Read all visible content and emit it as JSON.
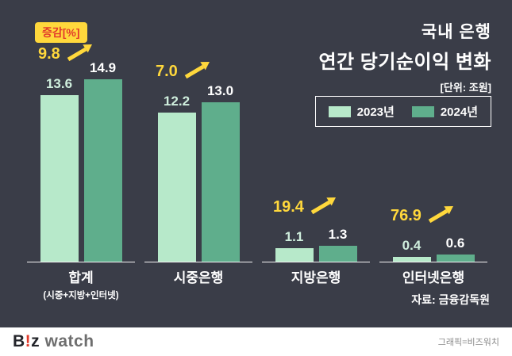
{
  "header": {
    "title_line1": "국내 은행",
    "title_line2": "연간 당기순이익 변화",
    "unit": "[단위: 조원]"
  },
  "change_label": "증감[%]",
  "legend": {
    "items": [
      {
        "label": "2023년",
        "color": "#b7e9ca"
      },
      {
        "label": "2024년",
        "color": "#5fae8c"
      }
    ]
  },
  "source": "자료: 금융감독원",
  "footer": {
    "logo": {
      "b": "B",
      "excl": "!",
      "z": "z",
      "watch": "watch"
    },
    "credit": "그래픽=비즈워치"
  },
  "colors": {
    "background": "#3a3d48",
    "accent_yellow": "#ffd83c",
    "accent_red": "#e23b2b"
  },
  "chart_data": {
    "type": "bar",
    "title": "국내 은행 연간 당기순이익 변화",
    "unit": "조원",
    "categories": [
      "합계",
      "시중은행",
      "지방은행",
      "인터넷은행"
    ],
    "category_subtitles": [
      "(시중+지방+인터넷)",
      "",
      "",
      ""
    ],
    "series": [
      {
        "name": "2023년",
        "color": "#b7e9ca",
        "values": [
          13.6,
          12.2,
          1.1,
          0.4
        ]
      },
      {
        "name": "2024년",
        "color": "#5fae8c",
        "values": [
          14.9,
          13.0,
          1.3,
          0.6
        ]
      }
    ],
    "pct_change": [
      9.8,
      7.0,
      19.4,
      76.9
    ],
    "ylim": [
      0,
      14.9
    ],
    "legend_position": "top-right",
    "grid": false
  }
}
